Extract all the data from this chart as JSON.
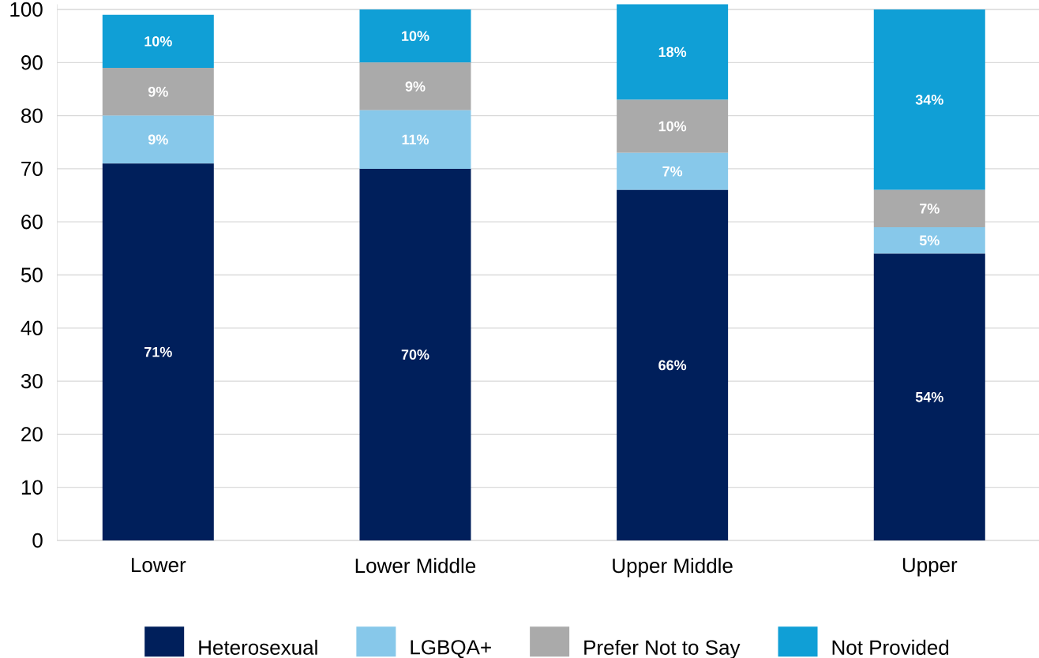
{
  "chart_data": {
    "type": "bar",
    "stacked": true,
    "categories": [
      "Lower",
      "Lower Middle",
      "Upper Middle",
      "Upper"
    ],
    "series": [
      {
        "name": "Heterosexual",
        "color": "#001f5b",
        "values": [
          71,
          70,
          66,
          54
        ],
        "value_labels": [
          "71%",
          "70%",
          "66%",
          "54%"
        ]
      },
      {
        "name": "LGBQA+",
        "color": "#87c8ea",
        "values": [
          9,
          11,
          7,
          5
        ],
        "value_labels": [
          "9%",
          "11%",
          "7%",
          "5%"
        ]
      },
      {
        "name": "Prefer Not to Say",
        "color": "#aaaaaa",
        "values": [
          9,
          9,
          10,
          7
        ],
        "value_labels": [
          "9%",
          "9%",
          "10%",
          "7%"
        ]
      },
      {
        "name": "Not Provided",
        "color": "#109fd6",
        "values": [
          10,
          10,
          18,
          34
        ],
        "value_labels": [
          "10%",
          "10%",
          "18%",
          "34%"
        ]
      }
    ],
    "ylim": [
      0,
      101
    ],
    "yticks": [
      0,
      10,
      20,
      30,
      40,
      50,
      60,
      70,
      80,
      90,
      100
    ],
    "grid": "y",
    "legend": "bottom"
  }
}
